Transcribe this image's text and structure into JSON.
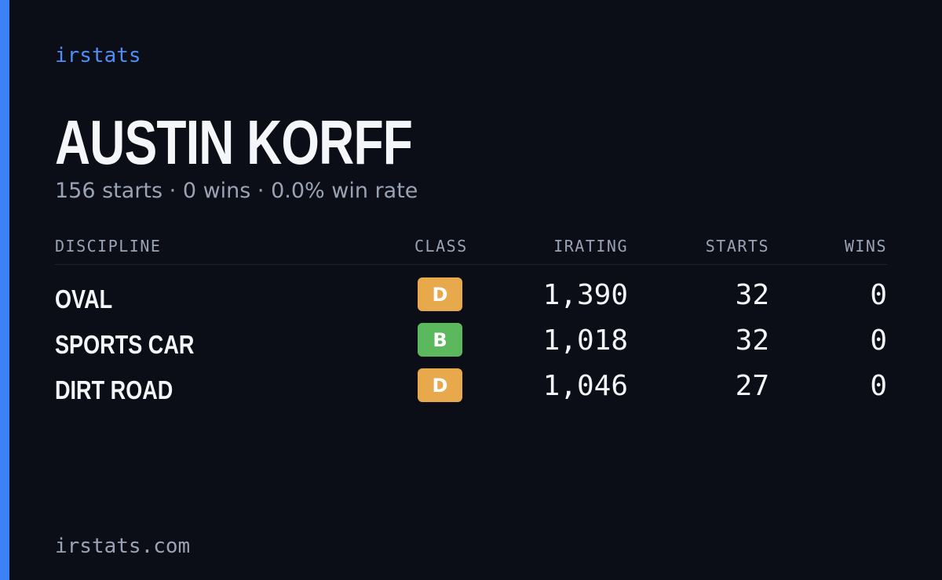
{
  "brand": "irstats",
  "driver": {
    "name": "AUSTIN KORFF",
    "summary": "156 starts · 0 wins · 0.0% win rate"
  },
  "table": {
    "headers": [
      "DISCIPLINE",
      "CLASS",
      "IRATING",
      "STARTS",
      "WINS"
    ],
    "rows": [
      {
        "discipline": "OVAL",
        "class": "D",
        "class_color": "#e8a94c",
        "irating": "1,390",
        "starts": "32",
        "wins": "0"
      },
      {
        "discipline": "SPORTS CAR",
        "class": "B",
        "class_color": "#5cb85c",
        "irating": "1,018",
        "starts": "32",
        "wins": "0"
      },
      {
        "discipline": "DIRT ROAD",
        "class": "D",
        "class_color": "#e8a94c",
        "irating": "1,046",
        "starts": "27",
        "wins": "0"
      }
    ]
  },
  "footer": "irstats.com"
}
